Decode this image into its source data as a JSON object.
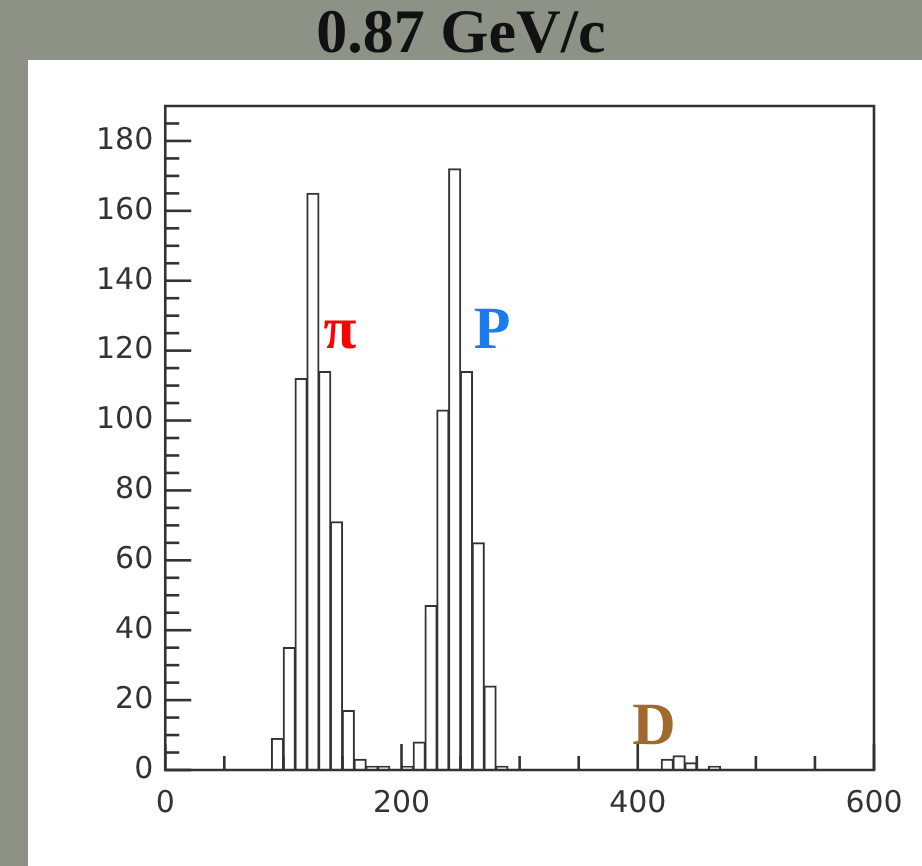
{
  "chart_data": {
    "type": "histogram",
    "title": "0.87 GeV/c",
    "bins": [
      90,
      100,
      110,
      120,
      130,
      140,
      150,
      160,
      170,
      180,
      190,
      200,
      210,
      220,
      230,
      240,
      250,
      260,
      270,
      280,
      290,
      300,
      310,
      320,
      330,
      340,
      350,
      360,
      370,
      380,
      390,
      400,
      410,
      420,
      430,
      440,
      450,
      460,
      470
    ],
    "values": [
      9,
      35,
      112,
      165,
      114,
      71,
      17,
      3,
      1,
      1,
      0,
      1,
      8,
      47,
      103,
      172,
      114,
      65,
      24,
      1,
      0,
      0,
      0,
      0,
      0,
      0,
      0,
      0,
      0,
      0,
      0,
      0,
      0,
      3,
      4,
      2,
      0,
      1
    ],
    "color": "#ffffff",
    "xlim": [
      0,
      600
    ],
    "xticks": [
      0,
      {
        "value": 50,
        "label": null
      },
      {
        "value": 100,
        "label": null
      },
      {
        "value": 150,
        "label": null
      },
      200,
      {
        "value": 250,
        "label": null
      },
      {
        "value": 300,
        "label": null
      },
      {
        "value": 350,
        "label": null
      },
      400,
      {
        "value": 450,
        "label": null
      },
      {
        "value": 500,
        "label": null
      },
      {
        "value": 550,
        "label": null
      },
      600
    ],
    "ylim": [
      0,
      190
    ],
    "yticks": [
      0,
      {
        "value": 5,
        "label": null
      },
      {
        "value": 10,
        "label": null
      },
      {
        "value": 15,
        "label": null
      },
      20,
      {
        "value": 25,
        "label": null
      },
      {
        "value": 30,
        "label": null
      },
      {
        "value": 35,
        "label": null
      },
      40,
      {
        "value": 45,
        "label": null
      },
      {
        "value": 50,
        "label": null
      },
      {
        "value": 55,
        "label": null
      },
      60,
      {
        "value": 65,
        "label": null
      },
      {
        "value": 70,
        "label": null
      },
      {
        "value": 75,
        "label": null
      },
      80,
      {
        "value": 85,
        "label": null
      },
      {
        "value": 90,
        "label": null
      },
      {
        "value": 95,
        "label": null
      },
      100,
      {
        "value": 105,
        "label": null
      },
      {
        "value": 110,
        "label": null
      },
      {
        "value": 115,
        "label": null
      },
      120,
      {
        "value": 125,
        "label": null
      },
      {
        "value": 130,
        "label": null
      },
      {
        "value": 135,
        "label": null
      },
      140,
      {
        "value": 145,
        "label": null
      },
      {
        "value": 150,
        "label": null
      },
      {
        "value": 155,
        "label": null
      },
      160,
      {
        "value": 165,
        "label": null
      },
      {
        "value": 170,
        "label": null
      },
      {
        "value": 175,
        "label": null
      },
      180,
      {
        "value": 185,
        "label": null
      }
    ],
    "grid": false,
    "annotations": [
      "π",
      "P",
      "D"
    ]
  }
}
